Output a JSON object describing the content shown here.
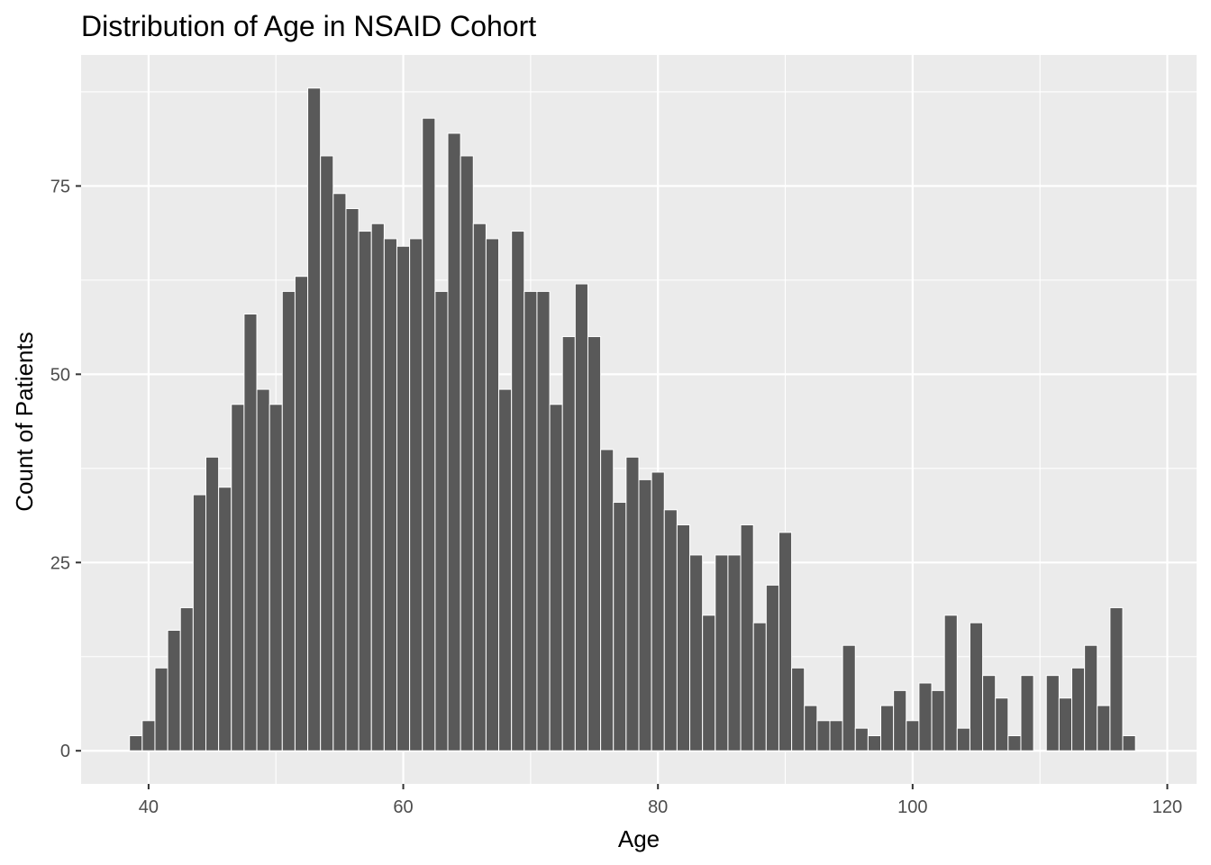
{
  "chart_data": {
    "type": "bar",
    "title": "Distribution of Age in NSAID Cohort",
    "xlabel": "Age",
    "ylabel": "Count of Patients",
    "xlim": [
      34.7,
      122.3
    ],
    "ylim": [
      -4.4,
      92.4
    ],
    "x_ticks": [
      40,
      60,
      80,
      100,
      120
    ],
    "y_ticks": [
      0,
      25,
      50,
      75
    ],
    "grid": true,
    "legend": "none",
    "colors": {
      "panel": "#ebebeb",
      "grid": "#ffffff",
      "bar": "#595959"
    },
    "bin_width": 1,
    "x": [
      39,
      40,
      41,
      42,
      43,
      44,
      45,
      46,
      47,
      48,
      49,
      50,
      51,
      52,
      53,
      54,
      55,
      56,
      57,
      58,
      59,
      60,
      61,
      62,
      63,
      64,
      65,
      66,
      67,
      68,
      69,
      70,
      71,
      72,
      73,
      74,
      75,
      76,
      77,
      78,
      79,
      80,
      81,
      82,
      83,
      84,
      85,
      86,
      87,
      88,
      89,
      90,
      91,
      92,
      93,
      94,
      95,
      96,
      97,
      98,
      99,
      100,
      101,
      102,
      103,
      104,
      105,
      106,
      107,
      108,
      109,
      110,
      111,
      112,
      113,
      114,
      115,
      116,
      117
    ],
    "values": [
      2,
      4,
      11,
      16,
      19,
      34,
      39,
      35,
      46,
      58,
      48,
      46,
      61,
      63,
      88,
      79,
      74,
      72,
      69,
      70,
      68,
      67,
      68,
      84,
      61,
      82,
      79,
      70,
      68,
      48,
      69,
      61,
      61,
      46,
      55,
      62,
      55,
      40,
      33,
      39,
      36,
      37,
      32,
      30,
      26,
      18,
      26,
      26,
      30,
      17,
      22,
      29,
      11,
      6,
      4,
      4,
      14,
      3,
      2,
      6,
      8,
      4,
      9,
      8,
      18,
      3,
      17,
      10,
      7,
      2,
      10,
      0,
      10,
      7,
      11,
      14,
      6,
      19,
      2
    ]
  }
}
